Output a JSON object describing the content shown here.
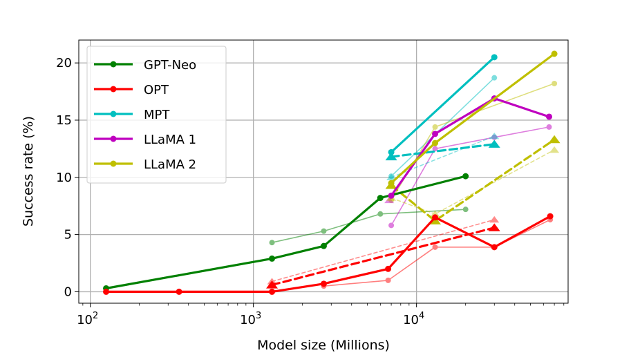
{
  "chart_data": {
    "type": "line",
    "title": "",
    "xlabel": "Model size (Millions)",
    "ylabel": "Success rate (%)",
    "xscale": "log",
    "xlim": [
      85,
      85000
    ],
    "ylim": [
      -1,
      22
    ],
    "grid": true,
    "legend_position": "top-left",
    "x_ticks": [
      {
        "value": 100,
        "base": "10",
        "exp": "2"
      },
      {
        "value": 1000,
        "base": "10",
        "exp": "3"
      },
      {
        "value": 10000,
        "base": "10",
        "exp": "4"
      }
    ],
    "y_ticks": [
      0,
      5,
      10,
      15,
      20
    ],
    "series": [
      {
        "name": "GPT-Neo",
        "color": "#008000",
        "group": "main",
        "line_style": "solid",
        "marker": "circle",
        "x": [
          125,
          1300,
          2700,
          6000,
          20000
        ],
        "y": [
          0.3,
          2.9,
          4.0,
          8.2,
          10.1
        ]
      },
      {
        "name": "OPT",
        "color": "#ff0000",
        "group": "main",
        "line_style": "solid",
        "marker": "circle",
        "x": [
          125,
          350,
          1300,
          2700,
          6700,
          13000,
          30000,
          66000
        ],
        "y": [
          0.0,
          0.0,
          0.0,
          0.7,
          2.0,
          6.5,
          3.9,
          6.6
        ]
      },
      {
        "name": "MPT",
        "color": "#00bfbf",
        "group": "main",
        "line_style": "solid",
        "marker": "circle",
        "x": [
          7000,
          30000
        ],
        "y": [
          12.2,
          20.5
        ]
      },
      {
        "name": "LLaMA 1",
        "color": "#bf00bf",
        "group": "main",
        "line_style": "solid",
        "marker": "circle",
        "x": [
          7000,
          13000,
          30000,
          65000
        ],
        "y": [
          8.4,
          13.8,
          16.9,
          15.3
        ]
      },
      {
        "name": "LLaMA 2",
        "color": "#bfbf00",
        "group": "main",
        "line_style": "solid",
        "marker": "circle",
        "x": [
          7000,
          13000,
          70000
        ],
        "y": [
          9.5,
          13.0,
          20.8
        ]
      },
      {
        "name": "GPT-Neo (faint)",
        "color": "#008000",
        "group": "faint",
        "line_style": "solid",
        "marker": "circle",
        "x": [
          1300,
          2700,
          6000,
          20000
        ],
        "y": [
          4.3,
          5.3,
          6.8,
          7.2
        ]
      },
      {
        "name": "OPT (faint)",
        "color": "#ff0000",
        "group": "faint",
        "line_style": "solid",
        "marker": "circle",
        "x": [
          2700,
          6700,
          13000,
          30000,
          66000
        ],
        "y": [
          0.5,
          1.0,
          3.9,
          3.9,
          6.3
        ]
      },
      {
        "name": "MPT (faint)",
        "color": "#00bfbf",
        "group": "faint",
        "line_style": "solid",
        "marker": "circle",
        "x": [
          7000,
          30000
        ],
        "y": [
          10.1,
          18.7
        ]
      },
      {
        "name": "LLaMA 1 (faint)",
        "color": "#bf00bf",
        "group": "faint",
        "line_style": "solid",
        "marker": "circle",
        "x": [
          7000,
          13000,
          30000,
          65000
        ],
        "y": [
          5.8,
          12.5,
          13.5,
          14.4
        ]
      },
      {
        "name": "LLaMA 2 (faint)",
        "color": "#bfbf00",
        "group": "faint",
        "line_style": "solid",
        "marker": "circle",
        "x": [
          7000,
          13000,
          70000
        ],
        "y": [
          8.0,
          14.4,
          18.2
        ]
      },
      {
        "name": "OPT (dashed)",
        "color": "#ff0000",
        "group": "dashed",
        "line_style": "dashed",
        "marker": "triangle",
        "x": [
          1300,
          30000
        ],
        "y": [
          0.6,
          5.6
        ]
      },
      {
        "name": "MPT (dashed)",
        "color": "#00bfbf",
        "group": "dashed",
        "line_style": "dashed",
        "marker": "triangle",
        "x": [
          7000,
          30000
        ],
        "y": [
          11.8,
          12.9
        ]
      },
      {
        "name": "LLaMA 2 (dashed)",
        "color": "#bfbf00",
        "group": "dashed",
        "line_style": "dashed",
        "marker": "triangle",
        "x": [
          7000,
          13000,
          70000
        ],
        "y": [
          9.3,
          6.2,
          13.3
        ]
      },
      {
        "name": "OPT (faint dashed)",
        "color": "#ff0000",
        "group": "faint-dashed",
        "line_style": "dashed",
        "marker": "triangle",
        "x": [
          1300,
          30000
        ],
        "y": [
          0.9,
          6.3
        ]
      },
      {
        "name": "MPT (faint dashed)",
        "color": "#00bfbf",
        "group": "faint-dashed",
        "line_style": "dashed",
        "marker": "triangle",
        "x": [
          7000,
          30000
        ],
        "y": [
          10.0,
          13.6
        ]
      },
      {
        "name": "LLaMA 1 (faint dashed)",
        "color": "#bf00bf",
        "group": "faint-dashed",
        "line_style": "dashed",
        "marker": "triangle",
        "x": [
          6800
        ],
        "y": [
          8.0
        ]
      },
      {
        "name": "LLaMA 2 (faint dashed)",
        "color": "#bfbf00",
        "group": "faint-dashed",
        "line_style": "dashed",
        "marker": "triangle",
        "x": [
          7000,
          13000,
          70000
        ],
        "y": [
          8.2,
          6.8,
          12.4
        ]
      }
    ],
    "legend": [
      {
        "label": "GPT-Neo",
        "color": "#008000"
      },
      {
        "label": "OPT",
        "color": "#ff0000"
      },
      {
        "label": "MPT",
        "color": "#00bfbf"
      },
      {
        "label": "LLaMA 1",
        "color": "#bf00bf"
      },
      {
        "label": "LLaMA 2",
        "color": "#bfbf00"
      }
    ]
  }
}
